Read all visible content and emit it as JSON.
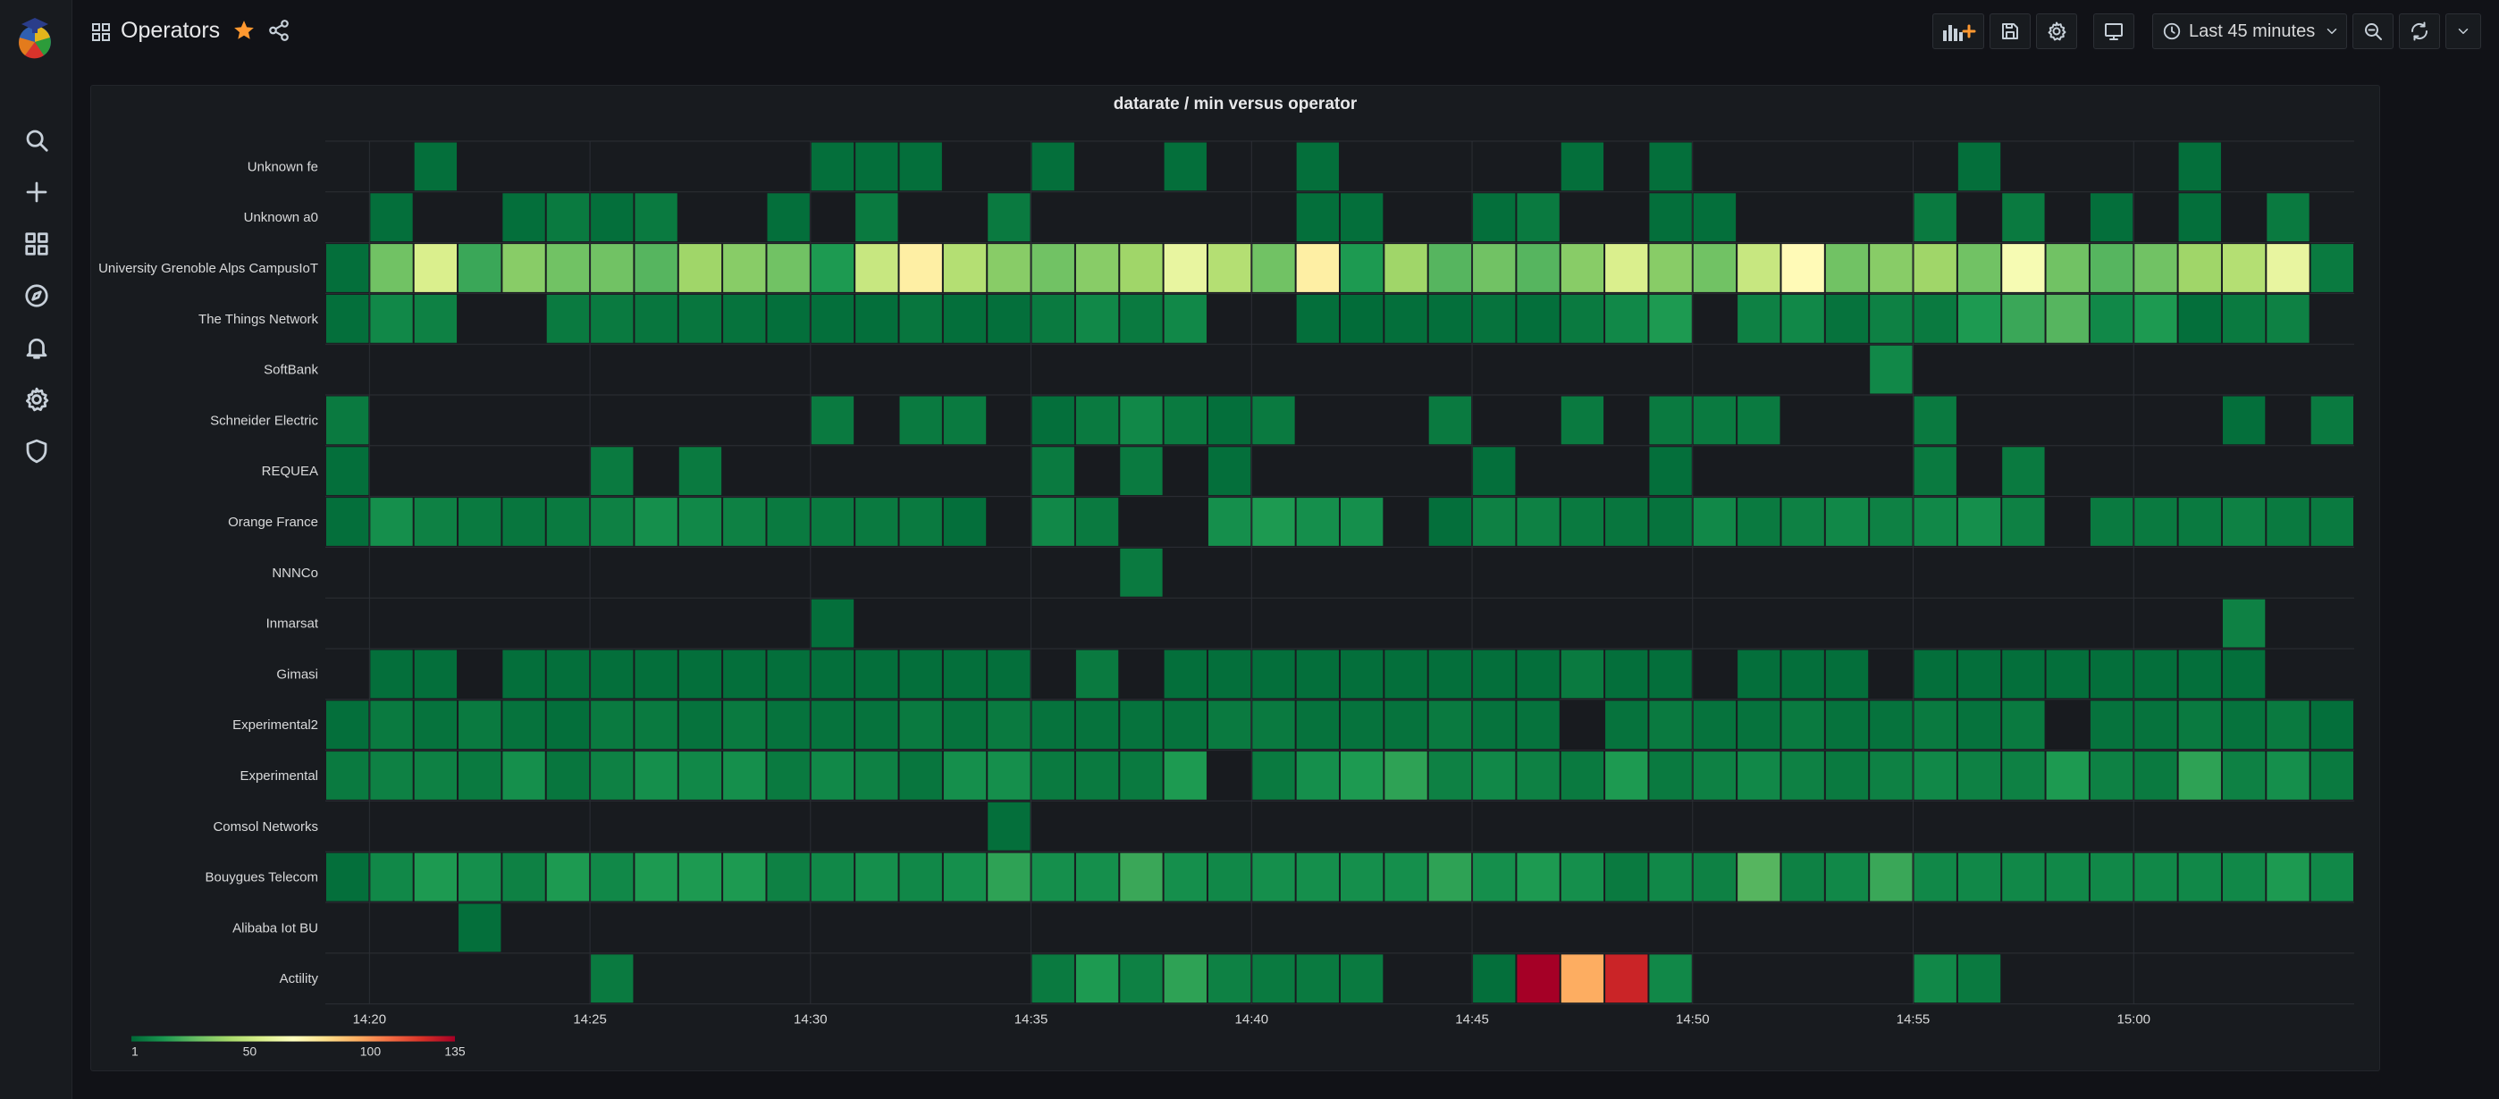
{
  "dashboard": {
    "title": "Operators",
    "time_range": "Last 45 minutes"
  },
  "sidebar": {
    "items": [
      {
        "name": "search-icon"
      },
      {
        "name": "plus-icon"
      },
      {
        "name": "dashboards-icon"
      },
      {
        "name": "explore-compass-icon"
      },
      {
        "name": "alerting-bell-icon"
      },
      {
        "name": "gear-icon"
      },
      {
        "name": "shield-icon"
      }
    ]
  },
  "toolbar": {
    "buttons": [
      "add-panel-icon",
      "save-icon",
      "gear-icon",
      "tv-mode-icon",
      "clock-icon",
      "zoom-out-icon",
      "refresh-icon",
      "chevron-down-icon"
    ]
  },
  "colors": {
    "background": "#111217",
    "panel": "#181b1f",
    "star": "#ff9830",
    "scale": [
      "#006837",
      "#1a9850",
      "#66bd63",
      "#a6d96a",
      "#d9ef8b",
      "#ffffbf",
      "#fee08b",
      "#fdae61",
      "#f46d43",
      "#d73027",
      "#a50026"
    ]
  },
  "chart_data": {
    "type": "heatmap",
    "title": "datarate / min versus operator",
    "rows": [
      "Unknown fe",
      "Unknown a0",
      "University Grenoble Alps CampusIoT",
      "The Things Network",
      "SoftBank",
      "Schneider Electric",
      "REQUEA",
      "Orange France",
      "NNNCo",
      "Inmarsat",
      "Gimasi",
      "Experimental2",
      "Experimental",
      "Comsol Networks",
      "Bouygues Telecom",
      "Alibaba Iot BU",
      "Actility"
    ],
    "columns_start": "14:19",
    "column_step_minutes": 1,
    "x_ticks": [
      "14:20",
      "14:25",
      "14:30",
      "14:35",
      "14:40",
      "14:45",
      "14:50",
      "14:55",
      "15:00"
    ],
    "legend": {
      "min": 1,
      "max": 135,
      "tick_labels": [
        "1",
        "50",
        "100",
        "135"
      ]
    },
    "values": [
      [
        0,
        0,
        3,
        0,
        0,
        0,
        0,
        0,
        0,
        0,
        0,
        3,
        3,
        3,
        0,
        0,
        3,
        0,
        0,
        3,
        0,
        0,
        3,
        0,
        0,
        0,
        0,
        0,
        3,
        0,
        3,
        0,
        0,
        0,
        0,
        0,
        0,
        3,
        0,
        0,
        0,
        0,
        3,
        0,
        0,
        0
      ],
      [
        0,
        3,
        0,
        0,
        3,
        6,
        3,
        6,
        0,
        0,
        3,
        0,
        6,
        0,
        0,
        6,
        0,
        0,
        0,
        0,
        0,
        0,
        3,
        3,
        0,
        0,
        3,
        6,
        0,
        0,
        3,
        3,
        0,
        0,
        0,
        0,
        6,
        0,
        6,
        0,
        3,
        0,
        3,
        0,
        6,
        0
      ],
      [
        3,
        30,
        55,
        20,
        35,
        30,
        30,
        25,
        40,
        35,
        30,
        15,
        50,
        75,
        45,
        35,
        30,
        35,
        40,
        60,
        45,
        30,
        75,
        15,
        40,
        25,
        30,
        25,
        35,
        55,
        35,
        30,
        50,
        70,
        30,
        35,
        40,
        30,
        65,
        30,
        25,
        30,
        40,
        45,
        60,
        6
      ],
      [
        3,
        10,
        8,
        0,
        0,
        6,
        6,
        5,
        5,
        4,
        3,
        3,
        3,
        5,
        3,
        3,
        6,
        10,
        6,
        10,
        0,
        0,
        3,
        2,
        3,
        3,
        4,
        3,
        6,
        10,
        15,
        0,
        8,
        10,
        4,
        8,
        6,
        15,
        20,
        25,
        10,
        15,
        3,
        6,
        8,
        0
      ],
      [
        0,
        0,
        0,
        0,
        0,
        0,
        0,
        0,
        0,
        0,
        0,
        0,
        0,
        0,
        0,
        0,
        0,
        0,
        0,
        0,
        0,
        0,
        0,
        0,
        0,
        0,
        0,
        0,
        0,
        0,
        0,
        0,
        0,
        0,
        0,
        10,
        0,
        0,
        0,
        0,
        0,
        0,
        0,
        0,
        0,
        0
      ],
      [
        6,
        0,
        0,
        0,
        0,
        0,
        0,
        0,
        0,
        0,
        0,
        6,
        0,
        6,
        6,
        0,
        3,
        6,
        10,
        6,
        3,
        6,
        0,
        0,
        0,
        6,
        0,
        0,
        6,
        0,
        6,
        6,
        6,
        0,
        0,
        0,
        6,
        0,
        0,
        0,
        0,
        0,
        0,
        3,
        0,
        6
      ],
      [
        3,
        0,
        0,
        0,
        0,
        0,
        6,
        0,
        6,
        0,
        0,
        0,
        0,
        0,
        0,
        0,
        6,
        0,
        6,
        0,
        3,
        0,
        0,
        0,
        0,
        0,
        3,
        0,
        0,
        0,
        3,
        0,
        0,
        0,
        0,
        0,
        6,
        0,
        6,
        0,
        0,
        0,
        0,
        0,
        0,
        0
      ],
      [
        3,
        12,
        8,
        6,
        5,
        6,
        8,
        12,
        10,
        8,
        6,
        6,
        6,
        6,
        3,
        0,
        10,
        6,
        0,
        0,
        12,
        15,
        12,
        12,
        0,
        3,
        8,
        8,
        6,
        5,
        4,
        10,
        6,
        8,
        10,
        8,
        10,
        12,
        8,
        0,
        6,
        6,
        6,
        8,
        6,
        6
      ],
      [
        0,
        0,
        0,
        0,
        0,
        0,
        0,
        0,
        0,
        0,
        0,
        0,
        0,
        0,
        0,
        0,
        0,
        0,
        6,
        0,
        0,
        0,
        0,
        0,
        0,
        0,
        0,
        0,
        0,
        0,
        0,
        0,
        0,
        0,
        0,
        0,
        0,
        0,
        0,
        0,
        0,
        0,
        0,
        0,
        0,
        0
      ],
      [
        0,
        0,
        0,
        0,
        0,
        0,
        0,
        0,
        0,
        0,
        0,
        3,
        0,
        0,
        0,
        0,
        0,
        0,
        0,
        0,
        0,
        0,
        0,
        0,
        0,
        0,
        0,
        0,
        0,
        0,
        0,
        0,
        0,
        0,
        0,
        0,
        0,
        0,
        0,
        0,
        0,
        0,
        0,
        8,
        0,
        0
      ],
      [
        0,
        3,
        3,
        0,
        3,
        3,
        3,
        3,
        3,
        3,
        3,
        3,
        3,
        3,
        3,
        3,
        0,
        6,
        0,
        3,
        3,
        3,
        3,
        3,
        3,
        3,
        3,
        3,
        6,
        3,
        3,
        0,
        3,
        3,
        3,
        0,
        3,
        3,
        3,
        3,
        3,
        3,
        3,
        3,
        0,
        0
      ],
      [
        3,
        6,
        4,
        6,
        4,
        3,
        6,
        6,
        4,
        6,
        4,
        4,
        4,
        6,
        4,
        6,
        4,
        4,
        4,
        4,
        6,
        6,
        4,
        4,
        4,
        6,
        4,
        4,
        0,
        4,
        6,
        4,
        4,
        6,
        4,
        4,
        6,
        4,
        6,
        0,
        4,
        4,
        6,
        4,
        6,
        3
      ],
      [
        6,
        8,
        8,
        6,
        12,
        5,
        8,
        12,
        10,
        12,
        6,
        10,
        8,
        5,
        12,
        12,
        6,
        6,
        6,
        15,
        0,
        6,
        12,
        15,
        18,
        8,
        10,
        8,
        6,
        15,
        6,
        8,
        10,
        8,
        6,
        8,
        10,
        8,
        8,
        15,
        8,
        6,
        18,
        8,
        12,
        6
      ],
      [
        0,
        0,
        0,
        0,
        0,
        0,
        0,
        0,
        0,
        0,
        0,
        0,
        0,
        0,
        0,
        3,
        0,
        0,
        0,
        0,
        0,
        0,
        0,
        0,
        0,
        0,
        0,
        0,
        0,
        0,
        0,
        0,
        0,
        0,
        0,
        0,
        0,
        0,
        0,
        0,
        0,
        0,
        0,
        0,
        0,
        0
      ],
      [
        3,
        10,
        15,
        12,
        8,
        15,
        10,
        15,
        15,
        15,
        8,
        10,
        12,
        10,
        12,
        18,
        12,
        12,
        20,
        12,
        10,
        12,
        12,
        12,
        12,
        18,
        12,
        15,
        12,
        6,
        10,
        8,
        25,
        8,
        10,
        20,
        10,
        10,
        10,
        10,
        10,
        10,
        10,
        10,
        15,
        10
      ],
      [
        0,
        0,
        0,
        3,
        0,
        0,
        0,
        0,
        0,
        0,
        0,
        0,
        0,
        0,
        0,
        0,
        0,
        0,
        0,
        0,
        0,
        0,
        0,
        0,
        0,
        0,
        0,
        0,
        0,
        0,
        0,
        0,
        0,
        0,
        0,
        0,
        0,
        0,
        0,
        0,
        0,
        0,
        0,
        0,
        0,
        0
      ],
      [
        0,
        0,
        0,
        0,
        0,
        0,
        6,
        0,
        0,
        0,
        0,
        0,
        0,
        0,
        0,
        0,
        6,
        15,
        8,
        18,
        8,
        6,
        6,
        6,
        0,
        0,
        3,
        135,
        95,
        125,
        10,
        0,
        0,
        0,
        0,
        0,
        10,
        6,
        0,
        0,
        0,
        0,
        0,
        0,
        0,
        0
      ]
    ]
  }
}
